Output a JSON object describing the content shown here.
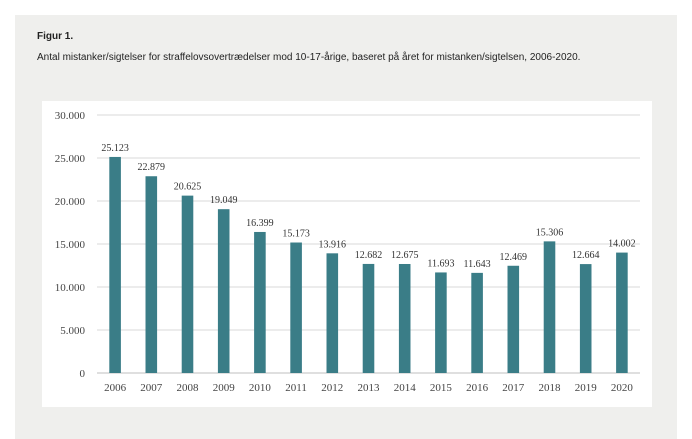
{
  "figure": {
    "label": "Figur 1.",
    "caption": "Antal mistanker/sigtelser for straffelovsovertrædelser mod 10-17-årige, baseret på året for mistanken/sigtelsen, 2006-2020."
  },
  "colors": {
    "bar": "#3a7d87",
    "panel_background": "#efefed",
    "chart_background": "#ffffff",
    "gridline": "#d9d9d9"
  },
  "chart_data": {
    "type": "bar",
    "categories": [
      "2006",
      "2007",
      "2008",
      "2009",
      "2010",
      "2011",
      "2012",
      "2013",
      "2014",
      "2015",
      "2016",
      "2017",
      "2018",
      "2019",
      "2020"
    ],
    "values": [
      25123,
      22879,
      20625,
      19049,
      16399,
      15173,
      13916,
      12682,
      12675,
      11693,
      11643,
      12469,
      15306,
      12664,
      14002
    ],
    "value_labels": [
      "25.123",
      "22.879",
      "20.625",
      "19.049",
      "16.399",
      "15.173",
      "13.916",
      "12.682",
      "12.675",
      "11.693",
      "11.643",
      "12.469",
      "15.306",
      "12.664",
      "14.002"
    ],
    "y_ticks": [
      0,
      5000,
      10000,
      15000,
      20000,
      25000,
      30000
    ],
    "y_tick_labels": [
      "0",
      "5.000",
      "10.000",
      "15.000",
      "20.000",
      "25.000",
      "30.000"
    ],
    "ylim": [
      0,
      30000
    ],
    "grid": true,
    "legend": "none"
  }
}
